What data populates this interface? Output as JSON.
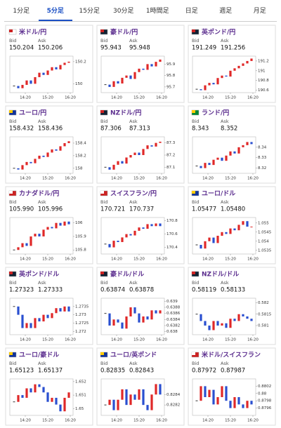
{
  "tabs": [
    "1分足",
    "5分足",
    "15分足",
    "30分足",
    "1時間足",
    "日足",
    "週足",
    "月足"
  ],
  "cards": [
    {
      "pair": "米ドル/円",
      "bid_label": "Bid",
      "ask_label": "Ask",
      "bid": "150.204",
      "ask": "150.206",
      "chart": {
        "ylim": [
          149.92,
          150.25
        ],
        "yticks": [
          150.2,
          150
        ],
        "xticks": [
          "14:20",
          "15:20",
          "16:20"
        ],
        "closes": [
          149.98,
          149.96,
          149.99,
          150.03,
          150.0,
          150.06,
          150.1,
          150.08,
          150.12,
          150.15,
          150.13,
          150.17,
          150.19,
          150.2
        ]
      }
    },
    {
      "pair": "豪ドル/円",
      "bid_label": "Bid",
      "ask_label": "Ask",
      "bid": "95.943",
      "ask": "95.948",
      "chart": {
        "ylim": [
          95.65,
          95.97
        ],
        "yticks": [
          95.9,
          95.8,
          95.7
        ],
        "xticks": [
          "14:20",
          "15:20",
          "16:20"
        ],
        "closes": [
          95.72,
          95.7,
          95.75,
          95.73,
          95.78,
          95.8,
          95.77,
          95.83,
          95.86,
          95.85,
          95.9,
          95.88,
          95.92,
          95.94
        ]
      }
    },
    {
      "pair": "英ポンド/円",
      "bid_label": "Bid",
      "ask_label": "Ask",
      "bid": "191.249",
      "ask": "191.256",
      "chart": {
        "ylim": [
          190.55,
          191.3
        ],
        "yticks": [
          191.2,
          191,
          190.8,
          190.6
        ],
        "xticks": [
          "14:20",
          "15:20",
          "16:20"
        ],
        "closes": [
          190.62,
          190.6,
          190.7,
          190.75,
          190.72,
          190.85,
          190.9,
          190.88,
          191.0,
          191.05,
          191.1,
          191.15,
          191.2,
          191.25
        ]
      }
    },
    {
      "pair": "ユーロ/円",
      "bid_label": "Bid",
      "ask_label": "Ask",
      "bid": "158.432",
      "ask": "158.436",
      "chart": {
        "ylim": [
          157.92,
          158.5
        ],
        "yticks": [
          158.4,
          158.2,
          158
        ],
        "xticks": [
          "14:20",
          "15:20",
          "16:20"
        ],
        "closes": [
          158.0,
          157.98,
          158.05,
          158.1,
          158.08,
          158.15,
          158.2,
          158.18,
          158.25,
          158.3,
          158.28,
          158.35,
          158.4,
          158.43
        ]
      }
    },
    {
      "pair": "NZドル/円",
      "bid_label": "Bid",
      "ask_label": "Ask",
      "bid": "87.306",
      "ask": "87.313",
      "chart": {
        "ylim": [
          87.05,
          87.35
        ],
        "yticks": [
          87.3,
          87.2,
          87.1
        ],
        "xticks": [
          "14:20",
          "15:20",
          "16:20"
        ],
        "closes": [
          87.1,
          87.08,
          87.12,
          87.15,
          87.13,
          87.18,
          87.2,
          87.22,
          87.2,
          87.25,
          87.28,
          87.27,
          87.3,
          87.31
        ]
      }
    },
    {
      "pair": "ランド/円",
      "bid_label": "Bid",
      "ask_label": "Ask",
      "bid": "8.343",
      "ask": "8.352",
      "chart": {
        "ylim": [
          8.315,
          8.35
        ],
        "yticks": [
          8.34,
          8.33,
          8.32
        ],
        "xticks": [
          "14:20",
          "15:20",
          "16:20"
        ],
        "closes": [
          8.322,
          8.32,
          8.325,
          8.323,
          8.328,
          8.33,
          8.327,
          8.332,
          8.336,
          8.334,
          8.34,
          8.342,
          8.345,
          8.343
        ]
      }
    },
    {
      "pair": "カナダドル/円",
      "bid_label": "Bid",
      "ask_label": "Ask",
      "bid": "105.990",
      "ask": "105.996",
      "chart": {
        "ylim": [
          105.77,
          106.04
        ],
        "yticks": [
          106,
          105.9,
          105.8
        ],
        "xticks": [
          "14:20",
          "15:20",
          "16:20"
        ],
        "closes": [
          105.8,
          105.82,
          105.85,
          105.83,
          105.9,
          105.92,
          105.9,
          105.95,
          105.97,
          105.96,
          106.0,
          105.98,
          106.01,
          105.99
        ]
      }
    },
    {
      "pair": "スイスフラン/円",
      "bid_label": "Bid",
      "ask_label": "Ask",
      "bid": "170.721",
      "ask": "170.737",
      "chart": {
        "ylim": [
          170.3,
          170.85
        ],
        "yticks": [
          170.8,
          170.6,
          170.4
        ],
        "xticks": [
          "14:20",
          "15:20",
          "16:20"
        ],
        "closes": [
          170.45,
          170.4,
          170.5,
          170.48,
          170.55,
          170.6,
          170.58,
          170.65,
          170.7,
          170.68,
          170.75,
          170.72,
          170.76,
          170.72
        ]
      }
    },
    {
      "pair": "ユーロ/ドル",
      "bid_label": "Bid",
      "ask_label": "Ask",
      "bid": "1.05477",
      "ask": "1.05480",
      "chart": {
        "ylim": [
          1.0533,
          1.0553
        ],
        "yticks": [
          1.055,
          1.0545,
          1.054,
          1.0535
        ],
        "xticks": [
          "14:20",
          "15:20",
          "16:20"
        ],
        "closes": [
          1.0538,
          1.0536,
          1.054,
          1.0542,
          1.0539,
          1.0543,
          1.0545,
          1.0544,
          1.0547,
          1.0546,
          1.0549,
          1.0551,
          1.0548,
          1.0548
        ]
      }
    },
    {
      "pair": "英ポンド/ドル",
      "bid_label": "Bid",
      "ask_label": "Ask",
      "bid": "1.27323",
      "ask": "1.27333",
      "chart": {
        "ylim": [
          1.2718,
          1.274
        ],
        "yticks": [
          1.2735,
          1.273,
          1.2725,
          1.272
        ],
        "xticks": [
          "14:20",
          "15:20",
          "16:20"
        ],
        "closes": [
          1.2735,
          1.273,
          1.2722,
          1.2725,
          1.2722,
          1.2728,
          1.2726,
          1.273,
          1.2728,
          1.2731,
          1.2734,
          1.2732,
          1.2735,
          1.2732
        ]
      }
    },
    {
      "pair": "豪ドル/ドル",
      "bid_label": "Bid",
      "ask_label": "Ask",
      "bid": "0.63874",
      "ask": "0.63878",
      "chart": {
        "ylim": [
          0.6379,
          0.6391
        ],
        "yticks": [
          0.639,
          0.6388,
          0.6386,
          0.6384,
          0.6382,
          0.638
        ],
        "xticks": [
          "14:20",
          "15:20",
          "16:20"
        ],
        "closes": [
          0.6386,
          0.6382,
          0.6384,
          0.6383,
          0.6381,
          0.6385,
          0.6388,
          0.6386,
          0.6383,
          0.6385,
          0.6384,
          0.6387,
          0.6386,
          0.6387
        ]
      }
    },
    {
      "pair": "NZドル/ドル",
      "bid_label": "Bid",
      "ask_label": "Ask",
      "bid": "0.58119",
      "ask": "0.58133",
      "chart": {
        "ylim": [
          0.5806,
          0.5822
        ],
        "yticks": [
          0.582,
          0.5815,
          0.581
        ],
        "xticks": [
          "14:20",
          "15:20",
          "16:20"
        ],
        "closes": [
          0.5815,
          0.5812,
          0.581,
          0.5808,
          0.5812,
          0.581,
          0.5811,
          0.5809,
          0.5813,
          0.5812,
          0.5815,
          0.5814,
          0.5813,
          0.5812
        ]
      }
    },
    {
      "pair": "ユーロ/豪ドル",
      "bid_label": "Bid",
      "ask_label": "Ask",
      "bid": "1.65123",
      "ask": "1.65137",
      "chart": {
        "ylim": [
          1.6495,
          1.6522
        ],
        "yticks": [
          1.652,
          1.651,
          1.65
        ],
        "xticks": [
          "14:20",
          "15:20",
          "16:20"
        ],
        "closes": [
          1.6505,
          1.651,
          1.6508,
          1.6515,
          1.6512,
          1.6518,
          1.6516,
          1.6512,
          1.6505,
          1.6508,
          1.6503,
          1.6498,
          1.6508,
          1.6512
        ]
      }
    },
    {
      "pair": "ユーロ/英ポンド",
      "bid_label": "Bid",
      "ask_label": "Ask",
      "bid": "0.82835",
      "ask": "0.82843",
      "chart": {
        "ylim": [
          0.828,
          0.8287
        ],
        "yticks": [
          0.8284,
          0.8282
        ],
        "xticks": [
          "14:20",
          "15:20",
          "16:20"
        ],
        "closes": [
          0.8282,
          0.8283,
          0.8281,
          0.8283,
          0.8285,
          0.8282,
          0.8284,
          0.8283,
          0.8285,
          0.8282,
          0.8281,
          0.8284,
          0.8286,
          0.8284
        ]
      }
    },
    {
      "pair": "米ドル/スイスフラン",
      "bid_label": "Bid",
      "ask_label": "Ask",
      "bid": "0.87972",
      "ask": "0.87987",
      "chart": {
        "ylim": [
          0.8794,
          0.8804
        ],
        "yticks": [
          0.8802,
          0.88,
          0.8798,
          0.8796
        ],
        "xticks": [
          "14:20",
          "15:20",
          "16:20"
        ],
        "closes": [
          0.8798,
          0.8802,
          0.8799,
          0.8801,
          0.8797,
          0.8799,
          0.8802,
          0.8798,
          0.8796,
          0.8799,
          0.8797,
          0.8796,
          0.8798,
          0.8797
        ]
      }
    }
  ]
}
